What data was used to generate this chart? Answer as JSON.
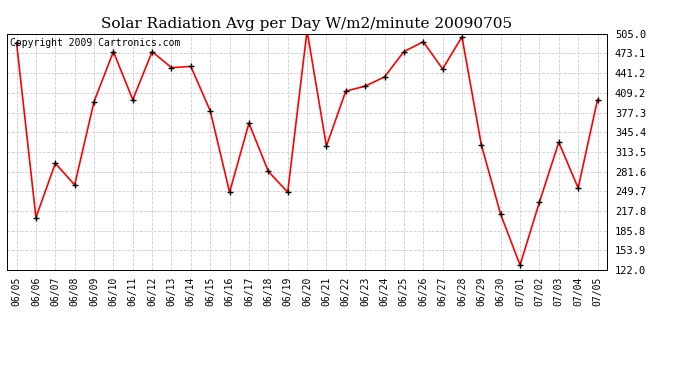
{
  "title": "Solar Radiation Avg per Day W/m2/minute 20090705",
  "copyright": "Copyright 2009 Cartronics.com",
  "dates": [
    "06/05",
    "06/06",
    "06/07",
    "06/08",
    "06/09",
    "06/10",
    "06/11",
    "06/12",
    "06/13",
    "06/14",
    "06/15",
    "06/16",
    "06/17",
    "06/18",
    "06/19",
    "06/20",
    "06/21",
    "06/22",
    "06/23",
    "06/24",
    "06/25",
    "06/26",
    "06/27",
    "06/28",
    "06/29",
    "06/30",
    "07/01",
    "07/02",
    "07/03",
    "07/04",
    "07/05"
  ],
  "values": [
    490.0,
    207.0,
    295.0,
    260.0,
    395.0,
    476.0,
    398.0,
    476.0,
    450.0,
    452.0,
    380.0,
    248.0,
    360.0,
    282.0,
    248.0,
    510.0,
    323.0,
    412.0,
    420.0,
    435.0,
    476.0,
    492.0,
    448.0,
    500.0,
    325.0,
    212.0,
    130.0,
    232.0,
    329.0,
    255.0,
    398.0
  ],
  "line_color": "#ff0000",
  "marker": "+",
  "marker_color": "#000000",
  "marker_size": 5,
  "line_width": 1.2,
  "ylim": [
    122.0,
    505.0
  ],
  "yticks": [
    122.0,
    153.9,
    185.8,
    217.8,
    249.7,
    281.6,
    313.5,
    345.4,
    377.3,
    409.2,
    441.2,
    473.1,
    505.0
  ],
  "background_color": "#ffffff",
  "grid_color": "#cccccc",
  "title_fontsize": 11,
  "copyright_fontsize": 7,
  "tick_fontsize": 7,
  "ytick_fontsize": 7.5
}
